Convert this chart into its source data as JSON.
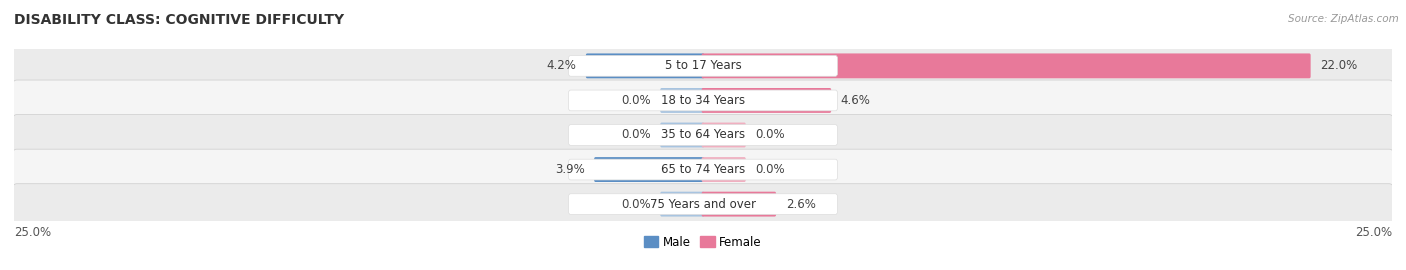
{
  "title": "DISABILITY CLASS: COGNITIVE DIFFICULTY",
  "source": "Source: ZipAtlas.com",
  "categories": [
    "5 to 17 Years",
    "18 to 34 Years",
    "35 to 64 Years",
    "65 to 74 Years",
    "75 Years and over"
  ],
  "male_values": [
    4.2,
    0.0,
    0.0,
    3.9,
    0.0
  ],
  "female_values": [
    22.0,
    4.6,
    0.0,
    0.0,
    2.6
  ],
  "male_color_strong": "#5b8ec4",
  "male_color_light": "#a8c4e0",
  "female_color_strong": "#e8799a",
  "female_color_light": "#f0afc0",
  "max_value": 25.0,
  "row_colors": [
    "#ebebeb",
    "#f5f5f5",
    "#ebebeb",
    "#f5f5f5",
    "#ebebeb"
  ],
  "title_fontsize": 10,
  "label_fontsize": 8.5,
  "value_fontsize": 8.5,
  "tick_fontsize": 8.5,
  "legend_fontsize": 8.5
}
